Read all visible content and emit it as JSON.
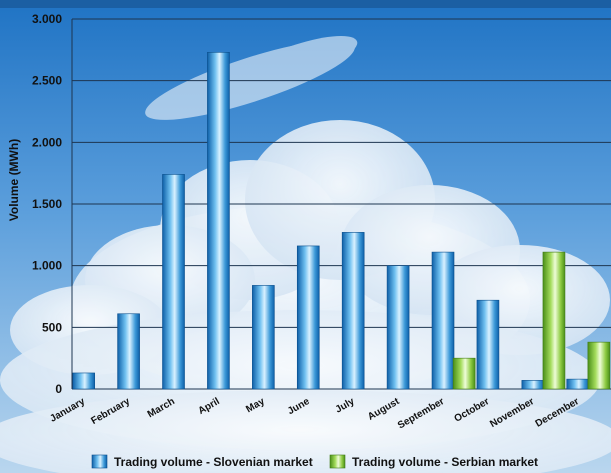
{
  "chart_data": {
    "type": "bar",
    "title": "",
    "xlabel": "",
    "ylabel": "Volume (MWh)",
    "ylim": [
      0,
      3000
    ],
    "yticks": [
      0,
      500,
      1000,
      1500,
      2000,
      2500,
      3000
    ],
    "ytick_labels": [
      "0",
      "500",
      "1.000",
      "1.500",
      "2.000",
      "2.500",
      "3.000"
    ],
    "grid": true,
    "legend": "bottom",
    "categories": [
      "January",
      "February",
      "March",
      "April",
      "May",
      "June",
      "July",
      "August",
      "September",
      "October",
      "November",
      "December"
    ],
    "series": [
      {
        "name": "Trading volume - Slovenian market",
        "color": "#2a8fd6",
        "values": [
          130,
          610,
          1740,
          2730,
          840,
          1160,
          1270,
          1000,
          1110,
          720,
          70,
          80
        ]
      },
      {
        "name": "Trading volume - Serbian market",
        "color": "#7cc23a",
        "values": [
          null,
          null,
          null,
          null,
          null,
          null,
          null,
          null,
          250,
          null,
          1110,
          380
        ]
      }
    ]
  }
}
